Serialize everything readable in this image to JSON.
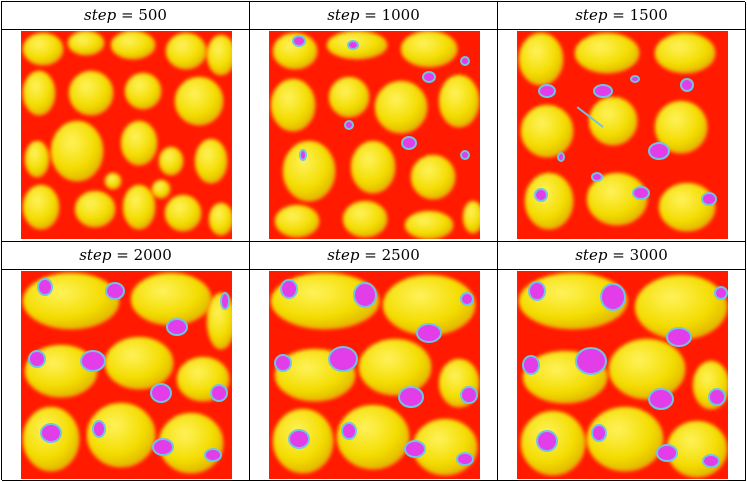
{
  "panels": [
    {
      "var": "step",
      "op": " = ",
      "value": "500"
    },
    {
      "var": "step",
      "op": " = ",
      "value": "1000"
    },
    {
      "var": "step",
      "op": " = ",
      "value": "1500"
    },
    {
      "var": "step",
      "op": " = ",
      "value": "2000"
    },
    {
      "var": "step",
      "op": " = ",
      "value": "2500"
    },
    {
      "var": "step",
      "op": " = ",
      "value": "3000"
    }
  ],
  "colors": {
    "background": "#ff1a00",
    "border_glow": "#ff6a00",
    "cell_fill": "#f5e400",
    "cell_shadow": "#c9a800",
    "core_fill": "#e23de8",
    "core_rim": "#6fc4e6"
  }
}
